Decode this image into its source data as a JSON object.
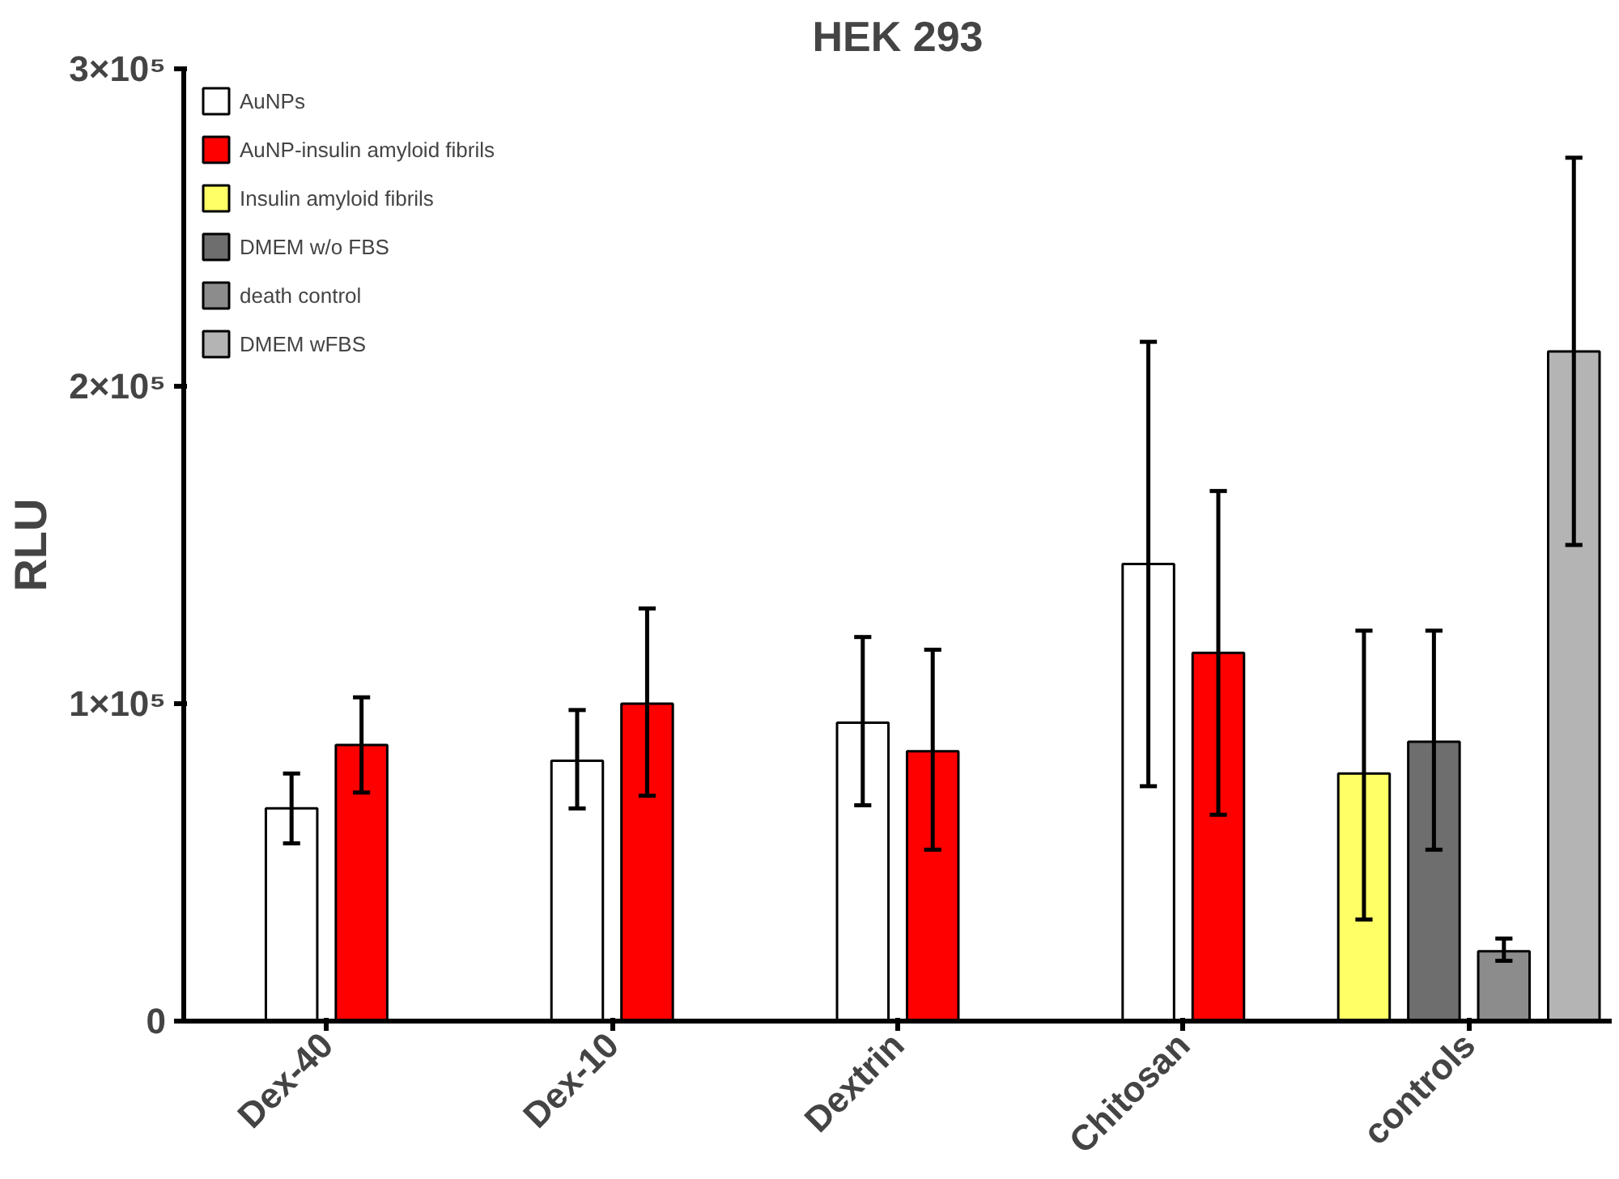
{
  "chart_data": {
    "type": "bar",
    "title": "HEK 293",
    "ylabel": "RLU",
    "categories": [
      "Dex-40",
      "Dex-10",
      "Dextrin",
      "Chitosan",
      "controls"
    ],
    "series": [
      {
        "name": "AuNPs",
        "color": "#ffffff",
        "values": [
          67000,
          82000,
          94000,
          144000,
          null
        ],
        "errors": [
          [
            56000,
            78000
          ],
          [
            67000,
            98000
          ],
          [
            68000,
            121000
          ],
          [
            74000,
            214000
          ],
          null
        ]
      },
      {
        "name": "AuNP-insulin amyloid fibrils",
        "color": "#ff0000",
        "values": [
          87000,
          100000,
          85000,
          116000,
          null
        ],
        "errors": [
          [
            72000,
            102000
          ],
          [
            71000,
            130000
          ],
          [
            54000,
            117000
          ],
          [
            65000,
            167000
          ],
          null
        ]
      },
      {
        "name": "Insulin amyloid fibrils",
        "color": "#ffff66",
        "values": [
          null,
          null,
          null,
          null,
          78000
        ],
        "errors": [
          null,
          null,
          null,
          null,
          [
            32000,
            123000
          ]
        ]
      },
      {
        "name": "DMEM w/o FBS",
        "color": "#6e6e6e",
        "values": [
          null,
          null,
          null,
          null,
          88000
        ],
        "errors": [
          null,
          null,
          null,
          null,
          [
            54000,
            123000
          ]
        ]
      },
      {
        "name": "death control",
        "color": "#8c8c8c",
        "values": [
          null,
          null,
          null,
          null,
          22000
        ],
        "errors": [
          null,
          null,
          null,
          null,
          [
            19000,
            26000
          ]
        ]
      },
      {
        "name": "DMEM wFBS",
        "color": "#b4b4b4",
        "values": [
          null,
          null,
          null,
          null,
          211000
        ],
        "errors": [
          null,
          null,
          null,
          null,
          [
            150000,
            272000
          ]
        ]
      }
    ],
    "ylim": [
      0,
      300000
    ],
    "yticks": [
      {
        "value": 0,
        "label": "0"
      },
      {
        "value": 100000,
        "label": "1×10⁵"
      },
      {
        "value": 200000,
        "label": "2×10⁵"
      },
      {
        "value": 300000,
        "label": "3×10⁵"
      }
    ],
    "grid": false,
    "legend": "top left"
  }
}
